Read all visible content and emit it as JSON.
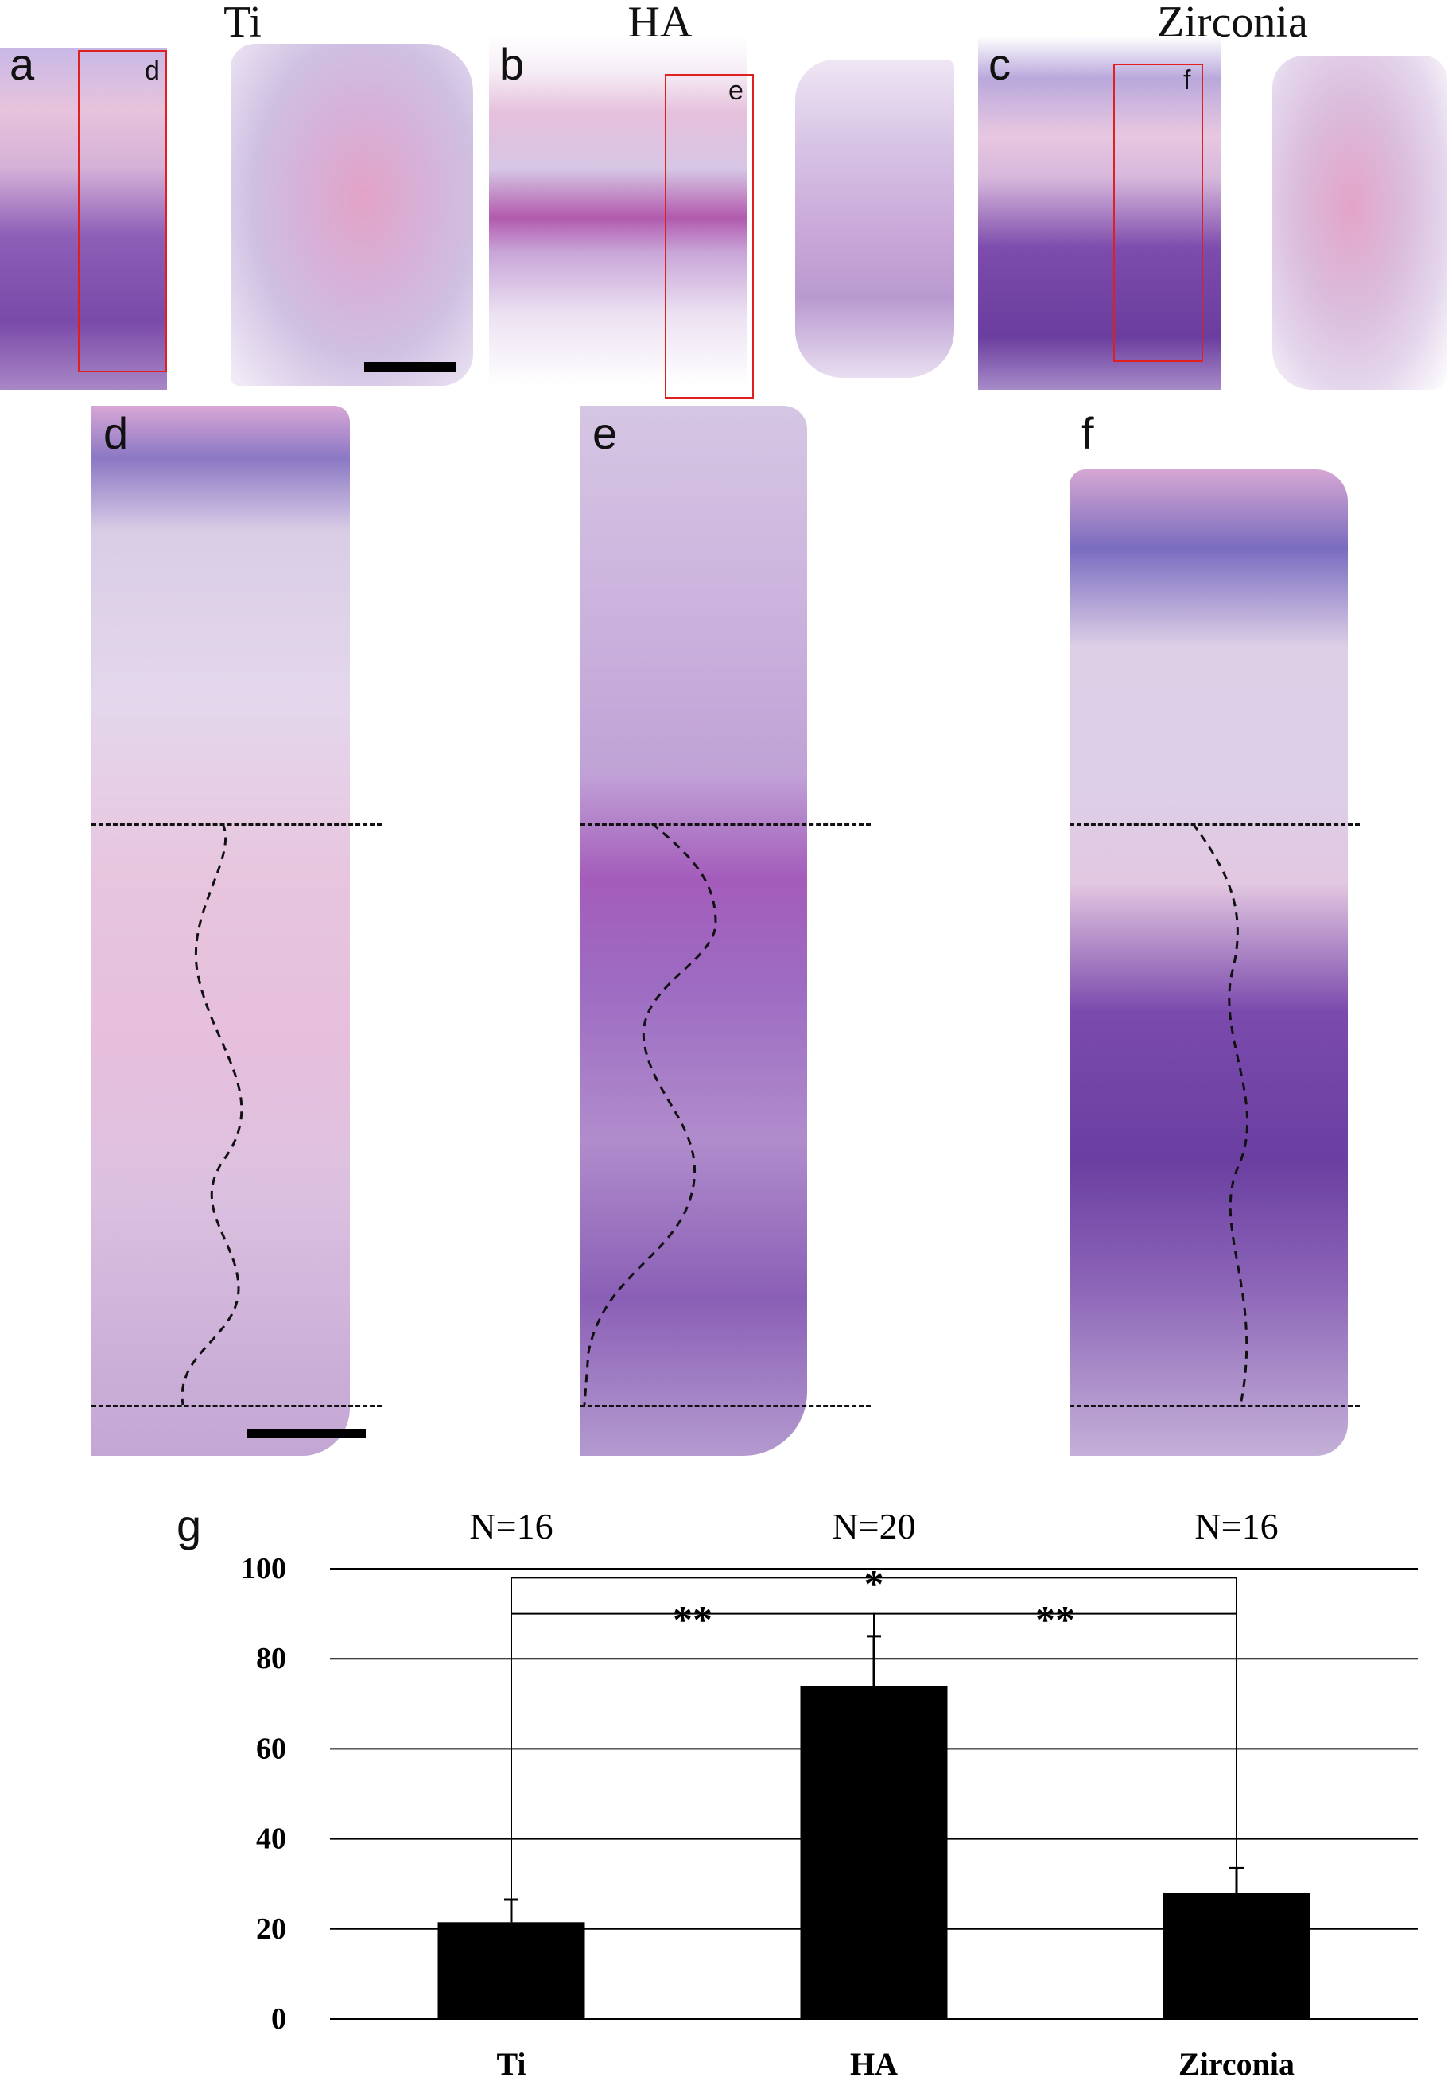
{
  "columns": [
    "Ti",
    "HA",
    "Zirconia"
  ],
  "panel_letters": {
    "a": "a",
    "b": "b",
    "c": "c",
    "d": "d",
    "e": "e",
    "f": "f",
    "g": "g"
  },
  "inset_letters": {
    "d": "d",
    "e": "e",
    "f": "f"
  },
  "colors": {
    "tissue_pink": "#e9b6d6",
    "tissue_purple": "#8a5bb5",
    "epithelium": "#5c4aa6",
    "zoom_box": "#e02020"
  },
  "chart_data": {
    "type": "bar",
    "categories": [
      "Ti",
      "HA",
      "Zirconia"
    ],
    "values": [
      21.5,
      74,
      28
    ],
    "errors": [
      5,
      11,
      5.5
    ],
    "n_labels": [
      "N=16",
      "N=20",
      "N=16"
    ],
    "ylim": [
      0,
      100
    ],
    "yticks": [
      0,
      20,
      40,
      60,
      80,
      100
    ],
    "grid": true,
    "bar_color": "#000000",
    "significance": [
      {
        "pair": [
          "Ti",
          "HA"
        ],
        "label": "**"
      },
      {
        "pair": [
          "Ti",
          "Zirconia"
        ],
        "label": "*"
      },
      {
        "pair": [
          "HA",
          "Zirconia"
        ],
        "label": "**"
      }
    ]
  }
}
